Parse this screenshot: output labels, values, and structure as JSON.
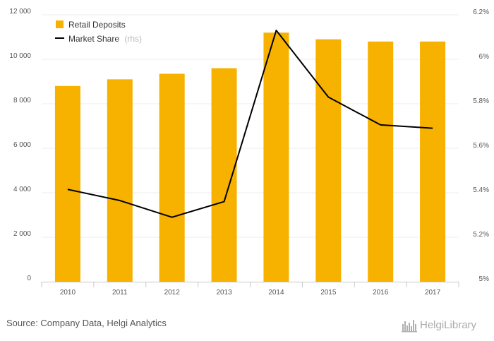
{
  "chart_data": {
    "type": "bar",
    "categories": [
      "2010",
      "2011",
      "2012",
      "2013",
      "2014",
      "2015",
      "2016",
      "2017"
    ],
    "series": [
      {
        "name": "Retail Deposits",
        "type": "bar",
        "axis": "left",
        "color": "#f7b200",
        "values": [
          8800,
          9100,
          9350,
          9600,
          11200,
          10900,
          10800,
          10800
        ]
      },
      {
        "name": "Market Share",
        "name_suffix": "(rhs)",
        "type": "line",
        "axis": "right",
        "color": "#000000",
        "values": [
          5.415,
          5.365,
          5.29,
          5.36,
          6.13,
          5.83,
          5.705,
          5.69
        ]
      }
    ],
    "ylim_left": [
      0,
      12000
    ],
    "yticks_left": [
      0,
      2000,
      4000,
      6000,
      8000,
      10000,
      12000
    ],
    "ytick_labels_left": [
      "0",
      "2 000",
      "4 000",
      "6 000",
      "8 000",
      "10 000",
      "12 000"
    ],
    "ylim_right": [
      5.0,
      6.2
    ],
    "yticks_right": [
      5.0,
      5.2,
      5.4,
      5.6,
      5.8,
      6.0,
      6.2
    ],
    "ytick_labels_right": [
      "5%",
      "5.2%",
      "5.4%",
      "5.6%",
      "5.8%",
      "6%",
      "6.2%"
    ],
    "grid": true,
    "legend_position": "top-left"
  },
  "source_text": "Source: Company Data, Helgi Analytics",
  "logo_text": "HelgiLibrary"
}
